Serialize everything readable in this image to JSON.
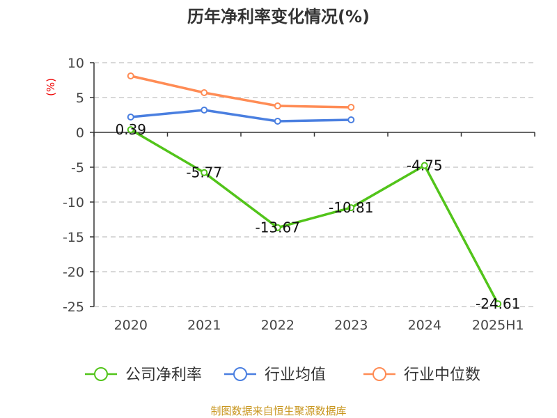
{
  "chart_data": {
    "type": "line",
    "title": "历年净利率变化情况(%)",
    "ylabel": "(%)",
    "xlabel": "",
    "categories": [
      "2020",
      "2021",
      "2022",
      "2023",
      "2024",
      "2025H1"
    ],
    "ylim": [
      -25,
      10
    ],
    "yticks": [
      10,
      5,
      0,
      -5,
      -10,
      -15,
      -20,
      -25
    ],
    "grid": true,
    "legend_position": "bottom",
    "series": [
      {
        "name": "公司净利率",
        "color": "#52c41a",
        "values": [
          0.39,
          -5.77,
          -13.67,
          -10.81,
          -4.75,
          -24.61
        ],
        "labels": [
          "0.39",
          "-5.77",
          "-13.67",
          "-10.81",
          "-4.75",
          "-24.61"
        ]
      },
      {
        "name": "行业均值",
        "color": "#4a7fe0",
        "values": [
          2.2,
          3.2,
          1.6,
          1.8,
          null,
          null
        ]
      },
      {
        "name": "行业中位数",
        "color": "#ff8c55",
        "values": [
          8.1,
          5.7,
          3.8,
          3.6,
          null,
          null
        ]
      }
    ]
  },
  "footer": "制图数据来自恒生聚源数据库"
}
